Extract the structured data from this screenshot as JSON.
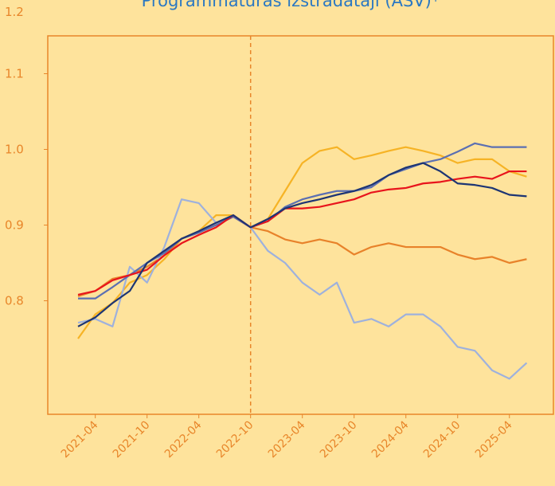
{
  "chart_data": {
    "type": "line",
    "title": "Programmatūras izstrādātāji (ASV)*",
    "categories": [
      null,
      "2021-04",
      null,
      null,
      "2021-10",
      null,
      null,
      "2022-04",
      null,
      null,
      "2022-10",
      null,
      null,
      "2023-04",
      null,
      null,
      "2023-10",
      null,
      null,
      "2024-04",
      null,
      null,
      "2024-10",
      null,
      null,
      "2025-04",
      null
    ],
    "vline": "2022-10",
    "ylim": [
      0.65,
      1.15
    ],
    "yticks": [
      0.8,
      0.9,
      {
        "value": 1.0,
        "label": "1.0"
      },
      1.1,
      1.2
    ],
    "series": [
      {
        "color": "#f6b325",
        "values": [
          0.75,
          0.782,
          0.797,
          0.824,
          0.834,
          0.855,
          0.882,
          0.892,
          0.913,
          0.913,
          0.897,
          0.908,
          0.945,
          0.982,
          0.998,
          1.003,
          0.987,
          0.992,
          0.998,
          1.003,
          0.998,
          0.992,
          0.982,
          0.987,
          0.987,
          0.971,
          0.964
        ]
      },
      {
        "color": "#e8822a",
        "values": [
          0.806,
          0.813,
          0.829,
          0.834,
          0.845,
          0.86,
          0.882,
          0.89,
          0.9,
          0.911,
          0.897,
          0.892,
          0.881,
          0.876,
          0.881,
          0.876,
          0.861,
          0.871,
          0.876,
          0.871,
          0.871,
          0.871,
          0.861,
          0.855,
          0.858,
          0.85,
          0.855
        ]
      },
      {
        "color": "#9eb1dd",
        "values": [
          0.771,
          0.776,
          0.766,
          0.845,
          0.824,
          0.871,
          0.934,
          0.929,
          0.903,
          0.913,
          0.897,
          0.866,
          0.85,
          0.824,
          0.808,
          0.824,
          0.771,
          0.776,
          0.766,
          0.782,
          0.782,
          0.766,
          0.739,
          0.734,
          0.708,
          0.697,
          0.718
        ]
      },
      {
        "color": "#5b6fb2",
        "values": [
          0.803,
          0.803,
          0.818,
          0.834,
          0.85,
          0.863,
          0.882,
          0.89,
          0.9,
          0.911,
          0.897,
          0.905,
          0.924,
          0.934,
          0.94,
          0.945,
          0.945,
          0.95,
          0.966,
          0.974,
          0.982,
          0.987,
          0.997,
          1.008,
          1.003,
          1.003,
          1.003
        ]
      },
      {
        "color": "#e8141c",
        "values": [
          0.808,
          0.813,
          0.827,
          0.834,
          0.841,
          0.86,
          0.876,
          0.887,
          0.897,
          0.913,
          0.897,
          0.905,
          0.922,
          0.922,
          0.924,
          0.929,
          0.934,
          0.943,
          0.947,
          0.949,
          0.955,
          0.957,
          0.961,
          0.964,
          0.961,
          0.971,
          0.971
        ]
      },
      {
        "color": "#1d3574",
        "values": [
          0.766,
          0.778,
          0.797,
          0.813,
          0.85,
          0.866,
          0.882,
          0.892,
          0.903,
          0.913,
          0.897,
          0.908,
          0.922,
          0.929,
          0.934,
          0.94,
          0.945,
          0.953,
          0.966,
          0.976,
          0.982,
          0.971,
          0.955,
          0.953,
          0.949,
          0.94,
          0.938
        ]
      }
    ]
  }
}
